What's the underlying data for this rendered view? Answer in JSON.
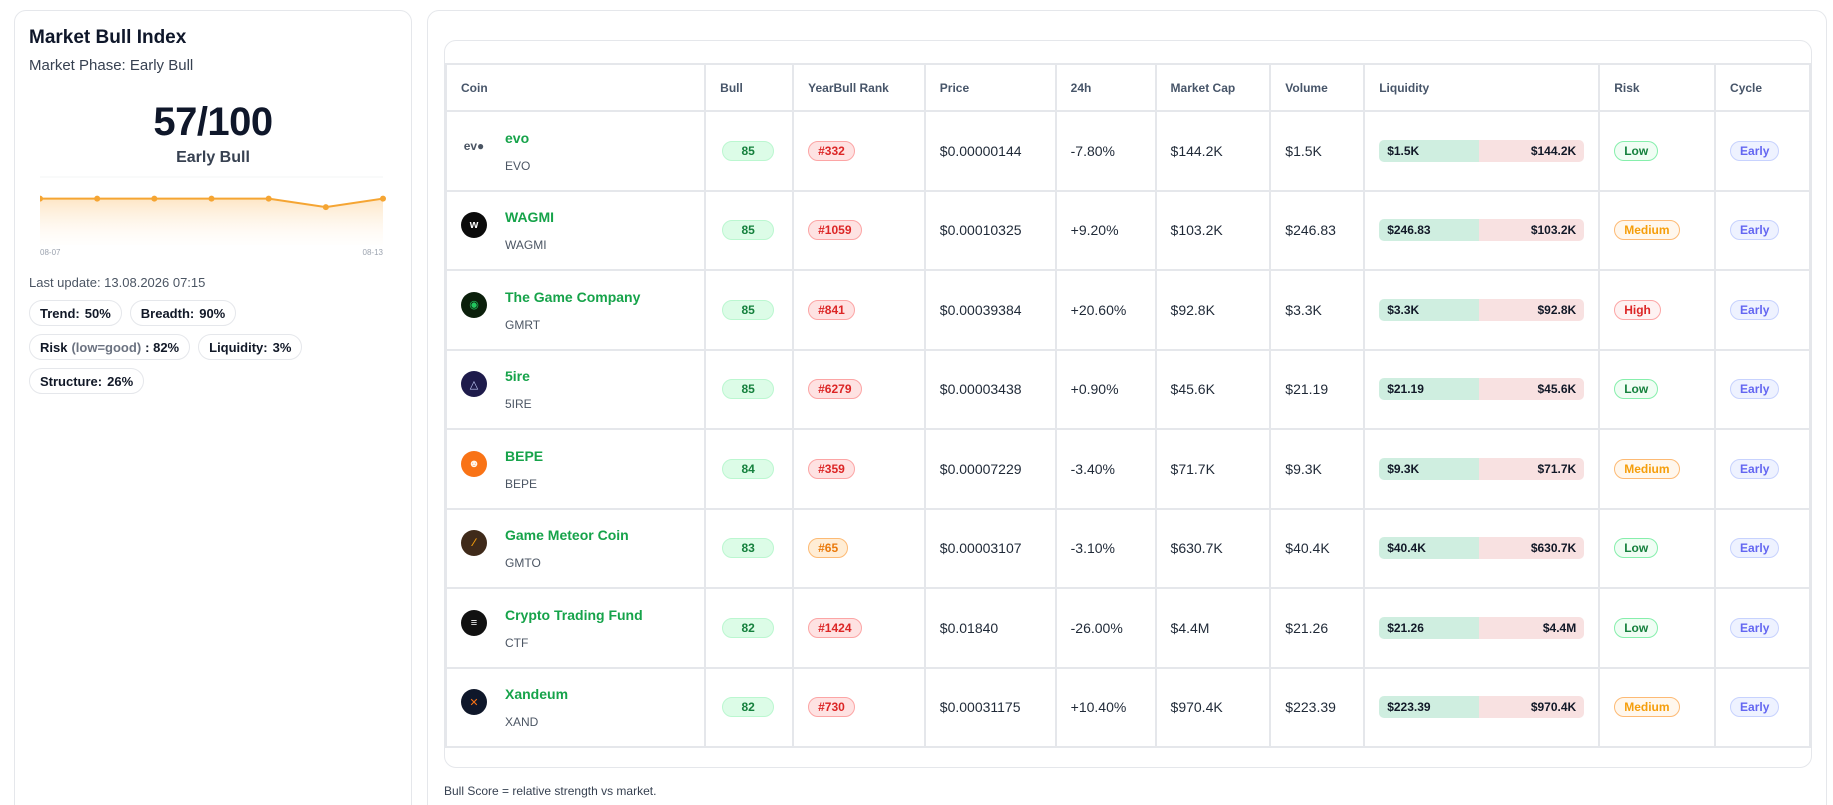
{
  "market": {
    "title": "Market Bull Index",
    "phase_text": "Market Phase: Early Bull",
    "score": "57/100",
    "label": "Early Bull",
    "chart_start_label": "08-07",
    "chart_end_label": "08-13",
    "last_update": "Last update: 13.08.2026 07:15",
    "sparkline": [
      57,
      57,
      57,
      57,
      57,
      52,
      57
    ],
    "metrics": [
      {
        "label": "Trend:",
        "note": "",
        "value": "50%"
      },
      {
        "label": "Breadth:",
        "note": "",
        "value": "90%"
      },
      {
        "label": "Risk",
        "note": "(low=good)",
        "value": ": 82%"
      },
      {
        "label": "Liquidity:",
        "note": "",
        "value": "3%"
      },
      {
        "label": "Structure:",
        "note": "",
        "value": "26%"
      }
    ]
  },
  "table": {
    "headers": [
      "Coin",
      "Bull",
      "YearBull Rank",
      "Price",
      "24h",
      "Market Cap",
      "Volume",
      "Liquidity",
      "Risk",
      "Cycle"
    ],
    "rows": [
      {
        "name": "evo",
        "symbol": "EVO",
        "icon": "evo-logo-icon",
        "icon_text": "ev●",
        "icon_bg": "#ffffff",
        "icon_fg": "#4b5563",
        "bull": "85",
        "rank": "#332",
        "rank_level": "red",
        "price": "$0.00000144",
        "change": "-7.80%",
        "mcap": "$144.2K",
        "volume": "$1.5K",
        "liq_vol": "$1.5K",
        "liq_mcap": "$144.2K",
        "liq_fraction": 0.49,
        "risk": "Low",
        "risk_level": "low",
        "cycle": "Early"
      },
      {
        "name": "WAGMI",
        "symbol": "WAGMI",
        "icon": "wagmi-logo-icon",
        "icon_text": "w",
        "icon_bg": "#0b0b0b",
        "icon_fg": "#ffffff",
        "bull": "85",
        "rank": "#1059",
        "rank_level": "red",
        "price": "$0.00010325",
        "change": "+9.20%",
        "mcap": "$103.2K",
        "volume": "$246.83",
        "liq_vol": "$246.83",
        "liq_mcap": "$103.2K",
        "liq_fraction": 0.49,
        "risk": "Medium",
        "risk_level": "medium",
        "cycle": "Early"
      },
      {
        "name": "The Game Company",
        "symbol": "GMRT",
        "icon": "game-company-logo-icon",
        "icon_text": "◉",
        "icon_bg": "#0b1f0b",
        "icon_fg": "#22c55e",
        "bull": "85",
        "rank": "#841",
        "rank_level": "red",
        "price": "$0.00039384",
        "change": "+20.60%",
        "mcap": "$92.8K",
        "volume": "$3.3K",
        "liq_vol": "$3.3K",
        "liq_mcap": "$92.8K",
        "liq_fraction": 0.49,
        "risk": "High",
        "risk_level": "high",
        "cycle": "Early"
      },
      {
        "name": "5ire",
        "symbol": "5IRE",
        "icon": "5ire-logo-icon",
        "icon_text": "△",
        "icon_bg": "#1e1b4b",
        "icon_fg": "#c7d2fe",
        "bull": "85",
        "rank": "#6279",
        "rank_level": "red",
        "price": "$0.00003438",
        "change": "+0.90%",
        "mcap": "$45.6K",
        "volume": "$21.19",
        "liq_vol": "$21.19",
        "liq_mcap": "$45.6K",
        "liq_fraction": 0.49,
        "risk": "Low",
        "risk_level": "low",
        "cycle": "Early"
      },
      {
        "name": "BEPE",
        "symbol": "BEPE",
        "icon": "bepe-logo-icon",
        "icon_text": "☻",
        "icon_bg": "#f97316",
        "icon_fg": "#fff7ed",
        "bull": "84",
        "rank": "#359",
        "rank_level": "red",
        "price": "$0.00007229",
        "change": "-3.40%",
        "mcap": "$71.7K",
        "volume": "$9.3K",
        "liq_vol": "$9.3K",
        "liq_mcap": "$71.7K",
        "liq_fraction": 0.49,
        "risk": "Medium",
        "risk_level": "medium",
        "cycle": "Early"
      },
      {
        "name": "Game Meteor Coin",
        "symbol": "GMTO",
        "icon": "game-meteor-logo-icon",
        "icon_text": "∕",
        "icon_bg": "#3f2a1a",
        "icon_fg": "#f59e0b",
        "bull": "83",
        "rank": "#65",
        "rank_level": "orange",
        "price": "$0.00003107",
        "change": "-3.10%",
        "mcap": "$630.7K",
        "volume": "$40.4K",
        "liq_vol": "$40.4K",
        "liq_mcap": "$630.7K",
        "liq_fraction": 0.49,
        "risk": "Low",
        "risk_level": "low",
        "cycle": "Early"
      },
      {
        "name": "Crypto Trading Fund",
        "symbol": "CTF",
        "icon": "crypto-trading-fund-logo-icon",
        "icon_text": "≡",
        "icon_bg": "#111111",
        "icon_fg": "#ffffff",
        "bull": "82",
        "rank": "#1424",
        "rank_level": "red",
        "price": "$0.01840",
        "change": "-26.00%",
        "mcap": "$4.4M",
        "volume": "$21.26",
        "liq_vol": "$21.26",
        "liq_mcap": "$4.4M",
        "liq_fraction": 0.49,
        "risk": "Low",
        "risk_level": "low",
        "cycle": "Early"
      },
      {
        "name": "Xandeum",
        "symbol": "XAND",
        "icon": "xandeum-logo-icon",
        "icon_text": "✕",
        "icon_bg": "#0f172a",
        "icon_fg": "#f97316",
        "bull": "82",
        "rank": "#730",
        "rank_level": "red",
        "price": "$0.00031175",
        "change": "+10.40%",
        "mcap": "$970.4K",
        "volume": "$223.39",
        "liq_vol": "$223.39",
        "liq_mcap": "$970.4K",
        "liq_fraction": 0.49,
        "risk": "Medium",
        "risk_level": "medium",
        "cycle": "Early"
      }
    ]
  },
  "footnote": "Bull Score = relative strength vs market.",
  "colors": {
    "accent_green": "#16a34a",
    "spark_line": "#f5a533",
    "rank_red": "#dc2626",
    "cycle_indigo": "#6366f1"
  }
}
